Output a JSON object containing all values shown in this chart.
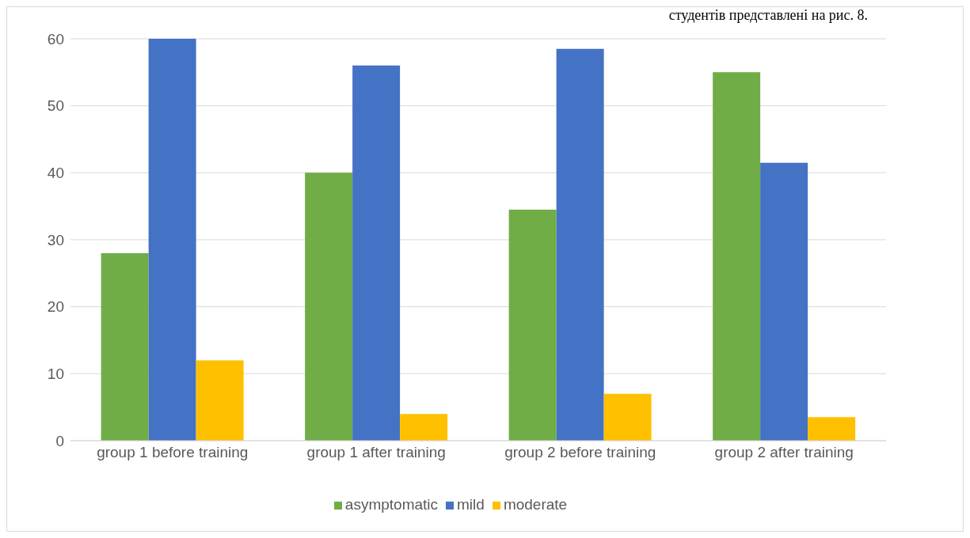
{
  "chart_data": {
    "type": "bar",
    "categories": [
      "group 1 before training",
      "group 1 after training",
      "group 2 before training",
      "group 2 after training"
    ],
    "series": [
      {
        "name": "asymptomatic",
        "color": "#70ad47",
        "values": [
          28,
          40,
          34.5,
          55
        ]
      },
      {
        "name": "mild",
        "color": "#4472c4",
        "values": [
          60,
          56,
          58.5,
          41.5
        ]
      },
      {
        "name": "moderate",
        "color": "#ffc000",
        "values": [
          12,
          4,
          7,
          3.5
        ]
      }
    ],
    "ylim": [
      0,
      60
    ],
    "yticks": [
      0,
      10,
      20,
      30,
      40,
      50,
      60
    ],
    "grid": "y",
    "legend": "bottom",
    "annotations": [
      "студентів представлені на рис. 8."
    ]
  }
}
